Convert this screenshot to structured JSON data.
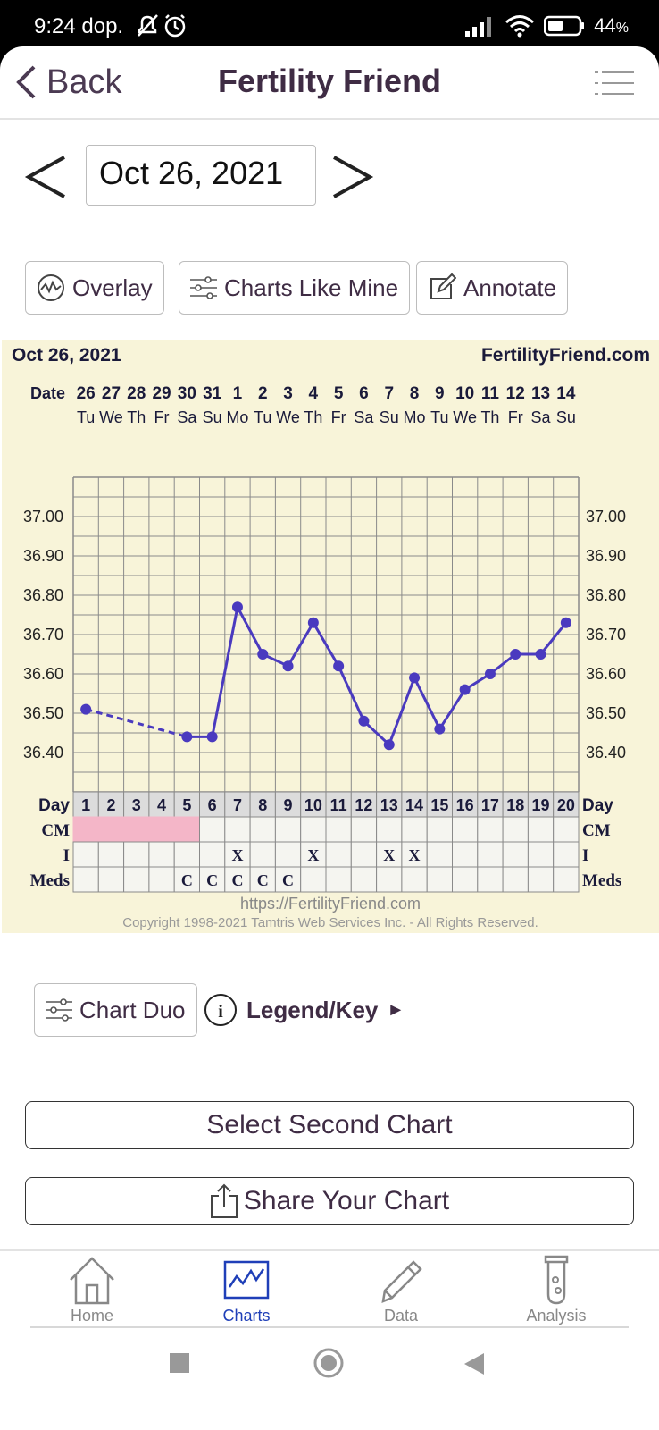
{
  "status": {
    "time": "9:24 dop.",
    "battery": "44",
    "battery_suffix": "%"
  },
  "header": {
    "back_label": "Back",
    "title": "Fertility Friend"
  },
  "date_picker": {
    "value": "Oct 26, 2021"
  },
  "tools": {
    "overlay": "Overlay",
    "charts_like_mine": "Charts Like Mine",
    "annotate": "Annotate"
  },
  "chart_data": {
    "type": "line",
    "title_left": "Oct 26, 2021",
    "title_right": "FertilityFriend.com",
    "date_label": "Date",
    "dates": [
      "26",
      "27",
      "28",
      "29",
      "30",
      "31",
      "1",
      "2",
      "3",
      "4",
      "5",
      "6",
      "7",
      "8",
      "9",
      "10",
      "11",
      "12",
      "13",
      "14"
    ],
    "weekdays": [
      "Tu",
      "We",
      "Th",
      "Fr",
      "Sa",
      "Su",
      "Mo",
      "Tu",
      "We",
      "Th",
      "Fr",
      "Sa",
      "Su",
      "Mo",
      "Tu",
      "We",
      "Th",
      "Fr",
      "Sa",
      "Su"
    ],
    "y_ticks": [
      "37.00",
      "36.90",
      "36.80",
      "36.70",
      "36.60",
      "36.50",
      "36.40"
    ],
    "ylim": [
      36.3,
      37.1
    ],
    "series": [
      {
        "values": [
          36.51,
          null,
          null,
          null,
          36.44,
          36.44,
          36.77,
          36.65,
          36.62,
          36.73,
          36.62,
          36.48,
          36.42,
          36.59,
          36.46,
          36.56,
          36.6,
          36.65,
          36.65,
          36.73
        ]
      }
    ],
    "rows": {
      "day_label": "Day",
      "days": [
        "1",
        "2",
        "3",
        "4",
        "5",
        "6",
        "7",
        "8",
        "9",
        "10",
        "11",
        "12",
        "13",
        "14",
        "15",
        "16",
        "17",
        "18",
        "19",
        "20"
      ],
      "cm_label": "CM",
      "cm_marked": [
        true,
        true,
        true,
        true,
        true,
        false,
        false,
        false,
        false,
        false,
        false,
        false,
        false,
        false,
        false,
        false,
        false,
        false,
        false,
        false
      ],
      "i_label": "I",
      "i_marks": [
        "",
        "",
        "",
        "",
        "",
        "",
        "X",
        "",
        "",
        "X",
        "",
        "",
        "X",
        "X",
        "",
        "",
        "",
        "",
        "",
        ""
      ],
      "meds_label": "Meds",
      "meds_marks": [
        "",
        "",
        "",
        "",
        "C",
        "C",
        "C",
        "C",
        "C",
        "",
        "",
        "",
        "",
        "",
        "",
        "",
        "",
        "",
        "",
        ""
      ]
    },
    "footer_url": "https://FertilityFriend.com",
    "footer_copyright": "Copyright 1998-2021 Tamtris Web Services Inc. - All Rights Reserved.",
    "colors": {
      "line": "#4a3abf",
      "cm": "#f4b6c8",
      "background": "#f8f4d9",
      "grid": "#8a8a8a"
    }
  },
  "below_chart": {
    "chart_duo": "Chart Duo",
    "legend_key": "Legend/Key",
    "legend_arrow": "►"
  },
  "buttons": {
    "select_second": "Select Second Chart",
    "share": "Share Your Chart"
  },
  "bottom_nav": {
    "home": "Home",
    "charts": "Charts",
    "data": "Data",
    "analysis": "Analysis"
  }
}
